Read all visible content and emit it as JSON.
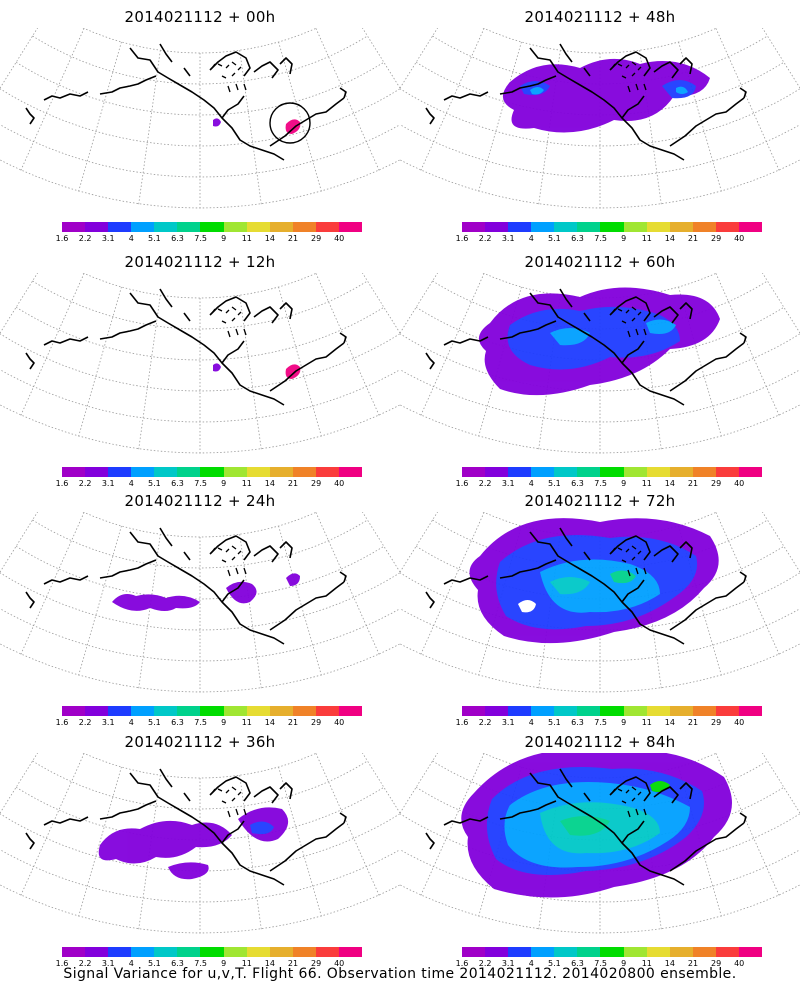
{
  "panels": [
    {
      "title": "2014021112 + 00h",
      "level": 0
    },
    {
      "title": "2014021112 + 48h",
      "level": 3
    },
    {
      "title": "2014021112 + 12h",
      "level": 0
    },
    {
      "title": "2014021112 + 60h",
      "level": 4
    },
    {
      "title": "2014021112 + 24h",
      "level": 1
    },
    {
      "title": "2014021112 + 72h",
      "level": 5
    },
    {
      "title": "2014021112 + 36h",
      "level": 2
    },
    {
      "title": "2014021112 + 84h",
      "level": 6
    }
  ],
  "colorbar": {
    "colors": [
      "#a000c8",
      "#8200dc",
      "#1e3cff",
      "#00a0ff",
      "#00c8c8",
      "#00d28c",
      "#00dc00",
      "#a0e632",
      "#e6dc32",
      "#e6af2d",
      "#f08228",
      "#fa3c3c",
      "#f00082"
    ],
    "labels": [
      "1.6",
      "2.2",
      "3.1",
      "4",
      "5.1",
      "6.3",
      "7.5",
      "9",
      "11",
      "14",
      "21",
      "29",
      "40"
    ]
  },
  "footer": "Signal Variance for u,v,T. Flight 66. Observation time 2014021112. 2014020800 ensemble."
}
